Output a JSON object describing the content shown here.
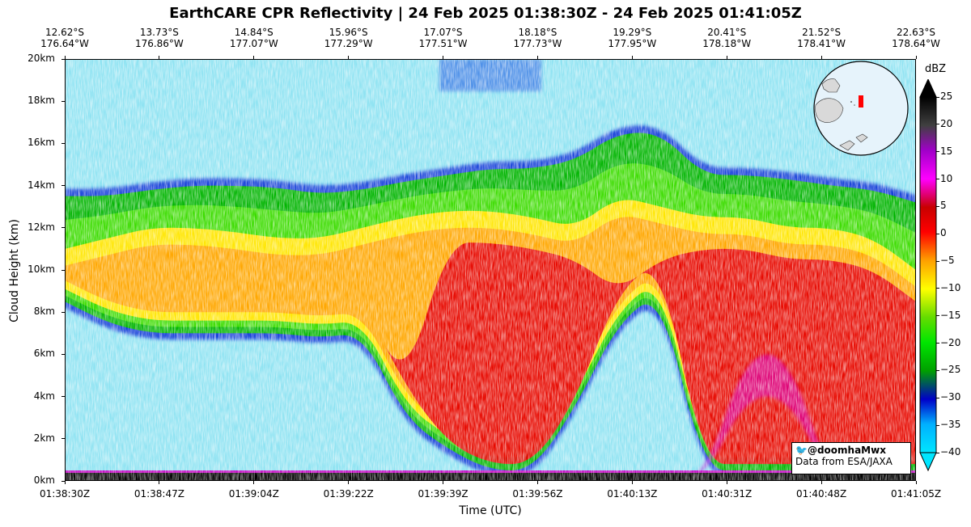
{
  "title": "EarthCARE CPR Reflectivity | 24 Feb 2025 01:38:30Z - 24 Feb 2025 01:41:05Z",
  "colors": {
    "background": "#8fe3f2",
    "colormap": [
      "#00e6ff",
      "#008cff",
      "#0000c8",
      "#00a000",
      "#00e600",
      "#ffff00",
      "#ff8c00",
      "#ff0000",
      "#c80000",
      "#a00000",
      "#ff00ff",
      "#a000c8",
      "#000000"
    ]
  },
  "credit": {
    "handle": "@doomhaMwx",
    "source": "Data from ESA/JAXA",
    "icon": "twitter-bird-icon"
  },
  "inset_map": {
    "icon": "globe-locator-icon",
    "track_color": "#ff0000"
  },
  "chart_data": {
    "type": "heatmap",
    "title": "EarthCARE CPR Reflectivity | 24 Feb 2025 01:38:30Z - 24 Feb 2025 01:41:05Z",
    "xlabel": "Time (UTC)",
    "ylabel": "Cloud Height (km)",
    "x_ticks": [
      "01:38:30Z",
      "01:38:47Z",
      "01:39:04Z",
      "01:39:22Z",
      "01:39:39Z",
      "01:39:56Z",
      "01:40:13Z",
      "01:40:31Z",
      "01:40:48Z",
      "01:41:05Z"
    ],
    "top_ticks": [
      {
        "lat": "12.62°S",
        "lon": "176.64°W"
      },
      {
        "lat": "13.73°S",
        "lon": "176.86°W"
      },
      {
        "lat": "14.84°S",
        "lon": "177.07°W"
      },
      {
        "lat": "15.96°S",
        "lon": "177.29°W"
      },
      {
        "lat": "17.07°S",
        "lon": "177.51°W"
      },
      {
        "lat": "18.18°S",
        "lon": "177.73°W"
      },
      {
        "lat": "19.29°S",
        "lon": "177.95°W"
      },
      {
        "lat": "20.41°S",
        "lon": "178.18°W"
      },
      {
        "lat": "21.52°S",
        "lon": "178.41°W"
      },
      {
        "lat": "22.63°S",
        "lon": "178.64°W"
      }
    ],
    "y_ticks": [
      "0km",
      "2km",
      "4km",
      "6km",
      "8km",
      "10km",
      "12km",
      "14km",
      "16km",
      "18km",
      "20km"
    ],
    "ylim": [
      0,
      20
    ],
    "colorbar": {
      "label": "dBZ",
      "min": -40,
      "max": 25,
      "ticks": [
        "25",
        "20",
        "15",
        "10",
        "5",
        "0",
        "−5",
        "−10",
        "−15",
        "−20",
        "−25",
        "−30",
        "−35",
        "−40"
      ],
      "extend": "both"
    },
    "cloud_profile": {
      "x_fraction": [
        0,
        0.05,
        0.1,
        0.15,
        0.2,
        0.25,
        0.3,
        0.35,
        0.4,
        0.45,
        0.5,
        0.55,
        0.6,
        0.65,
        0.7,
        0.75,
        0.8,
        0.85,
        0.9,
        0.95,
        1.0
      ],
      "cloud_top_km": [
        13.5,
        13.5,
        13.8,
        14.0,
        14.0,
        13.9,
        13.6,
        13.8,
        14.2,
        14.5,
        14.8,
        14.8,
        15.2,
        16.5,
        16.5,
        14.5,
        14.5,
        14.3,
        14.0,
        13.8,
        13.2
      ],
      "core_top_km": [
        11.0,
        11.5,
        12.0,
        12.0,
        11.8,
        11.5,
        11.5,
        12.0,
        12.5,
        12.8,
        12.8,
        12.5,
        12.0,
        13.5,
        13.0,
        12.5,
        12.5,
        12.0,
        12.0,
        11.5,
        10.0
      ],
      "cloud_base_km": [
        8.5,
        7.5,
        7.0,
        7.0,
        7.0,
        7.0,
        6.8,
        7.0,
        3.0,
        1.5,
        0.5,
        0.5,
        3.5,
        7.5,
        9.0,
        0.5,
        0.5,
        0.5,
        0.5,
        0.5,
        0.5
      ],
      "max_dbz": [
        -12,
        -8,
        -8,
        -8,
        -10,
        -10,
        -10,
        -5,
        0,
        5,
        10,
        10,
        5,
        -10,
        -15,
        10,
        15,
        15,
        10,
        10,
        5
      ]
    }
  }
}
